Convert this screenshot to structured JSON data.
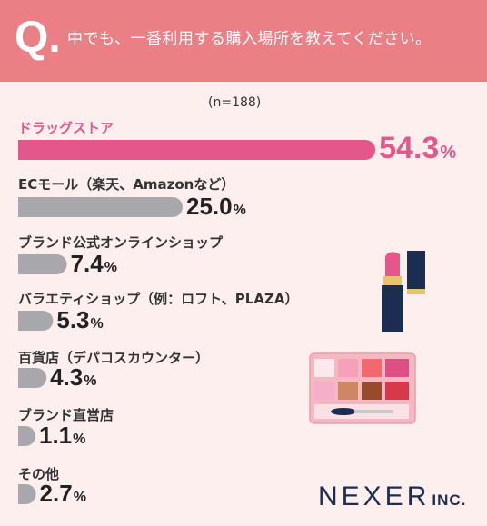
{
  "header": {
    "q_mark": "Q.",
    "question": "中でも、一番利用する購入場所を教えてください。"
  },
  "chart_data": {
    "type": "bar",
    "orientation": "horizontal",
    "n_label": "(n=188)",
    "unit": "%",
    "categories": [
      "ドラッグストア",
      "ECモール（楽天、Amazonなど）",
      "ブランド公式オンラインショップ",
      "バラエティショップ（例：ロフト、PLAZA）",
      "百貨店（デパコスカウンター）",
      "ブランド直営店",
      "その他"
    ],
    "values": [
      54.3,
      25.0,
      7.4,
      5.3,
      4.3,
      1.1,
      2.7
    ],
    "value_labels": [
      "54.3",
      "25.0",
      "7.4",
      "5.3",
      "4.3",
      "1.1",
      "2.7"
    ],
    "highlight_index": 0,
    "colors": {
      "highlight": "#e4578a",
      "default": "#a8a8ac"
    },
    "grid": false,
    "legend": "none"
  },
  "branding": {
    "logo_main": "NEXER",
    "logo_suffix": "INC."
  },
  "decoration": {
    "icons": [
      "lipstick-icon",
      "eyeshadow-palette-icon"
    ],
    "colors": {
      "lipstick_tube": "#1c2d52",
      "lipstick_gold": "#e8c46a",
      "lipstick_color": "#e4578a",
      "palette_frame": "#f3b8c2"
    }
  }
}
